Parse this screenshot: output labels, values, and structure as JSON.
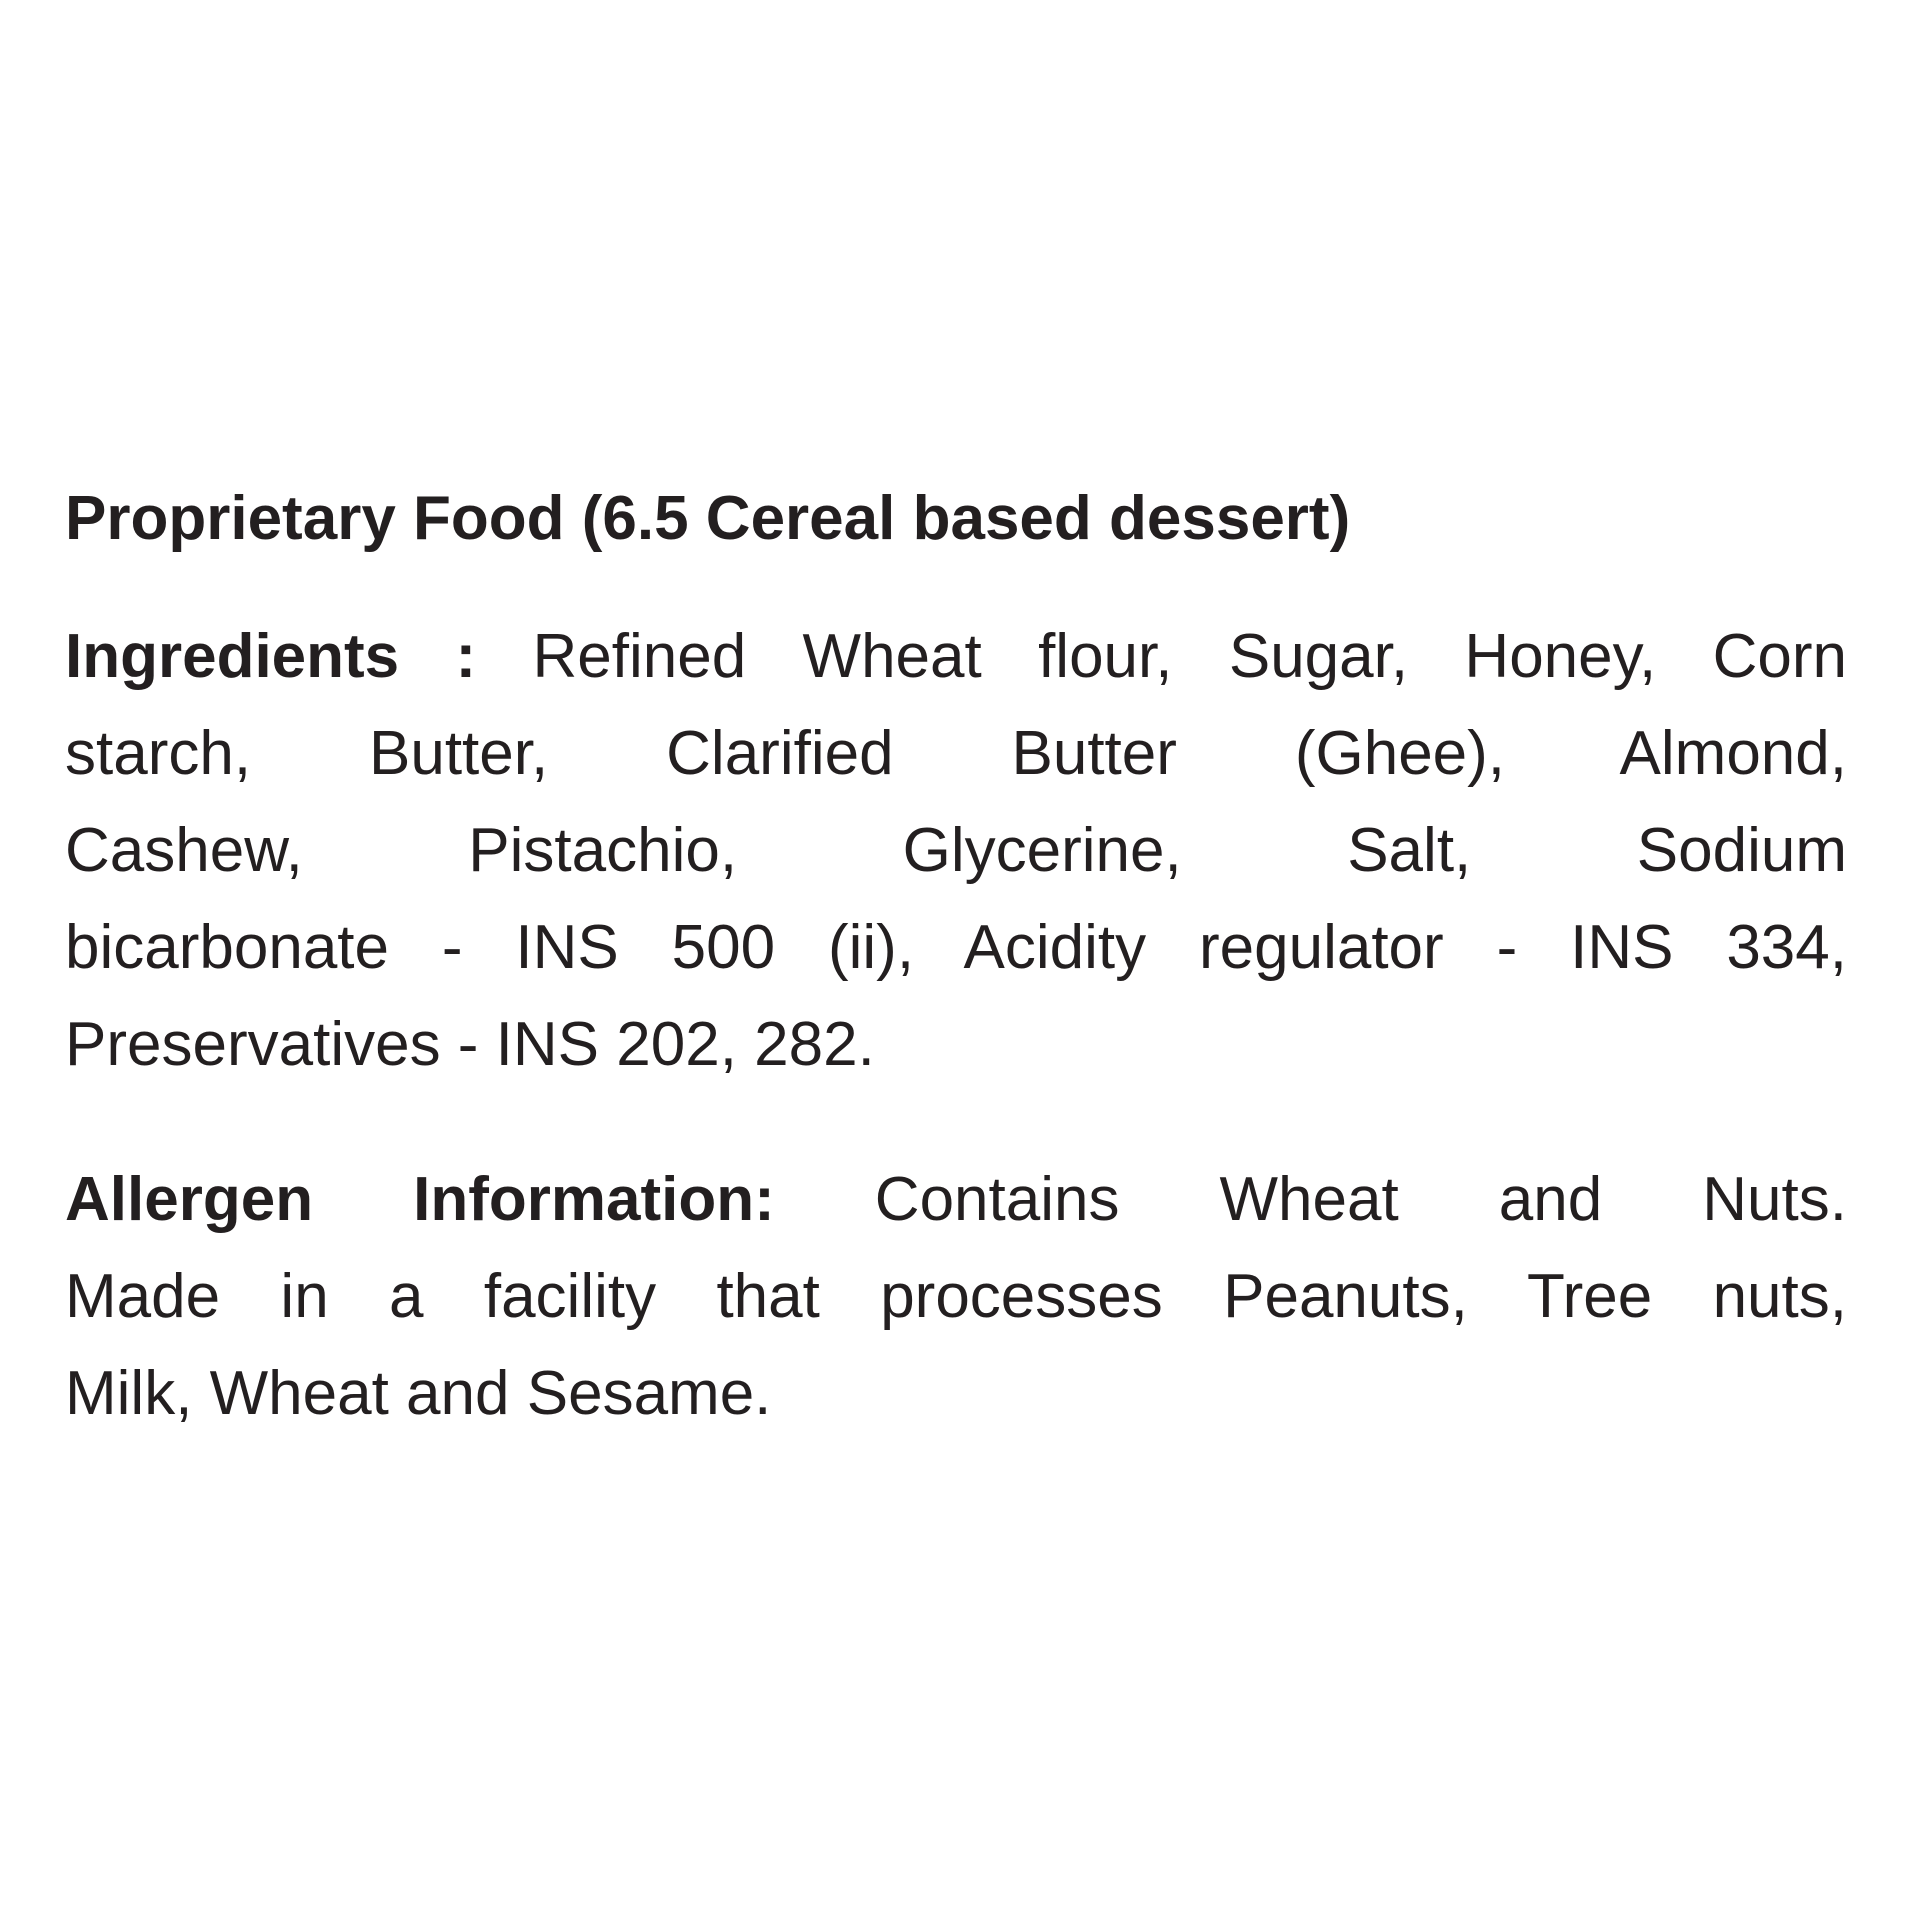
{
  "page": {
    "background_color": "#ffffff",
    "text_color": "#231f20"
  },
  "document": {
    "title": "Proprietary Food (6.5 Cereal based dessert)",
    "ingredients": {
      "label": "Ingredients :",
      "full_text": "Refined Wheat flour, Sugar, Honey, Corn starch, Butter, Clarified Butter (Ghee), Almond, Cashew, Pistachio, Glycerine, Salt, Sodium bicarbonate - INS 500 (ii), Acidity regulator - INS 334, Preservatives - INS 202, 282.",
      "lines": [
        " Refined Wheat flour, Sugar, Honey, Corn",
        "starch, Butter, Clarified Butter (Ghee), Almond,",
        "Cashew, Pistachio, Glycerine, Salt, Sodium",
        "bicarbonate - INS 500 (ii), Acidity regulator - INS 334,",
        "Preservatives - INS 202, 282."
      ]
    },
    "allergen": {
      "label": "Allergen Information:",
      "full_text": "Contains Wheat and Nuts. Made in a facility that processes Peanuts, Tree nuts, Milk, Wheat and Sesame.",
      "lines": [
        " Contains Wheat and Nuts.",
        "Made in a facility that processes Peanuts, Tree nuts,",
        "Milk, Wheat and Sesame."
      ]
    }
  }
}
